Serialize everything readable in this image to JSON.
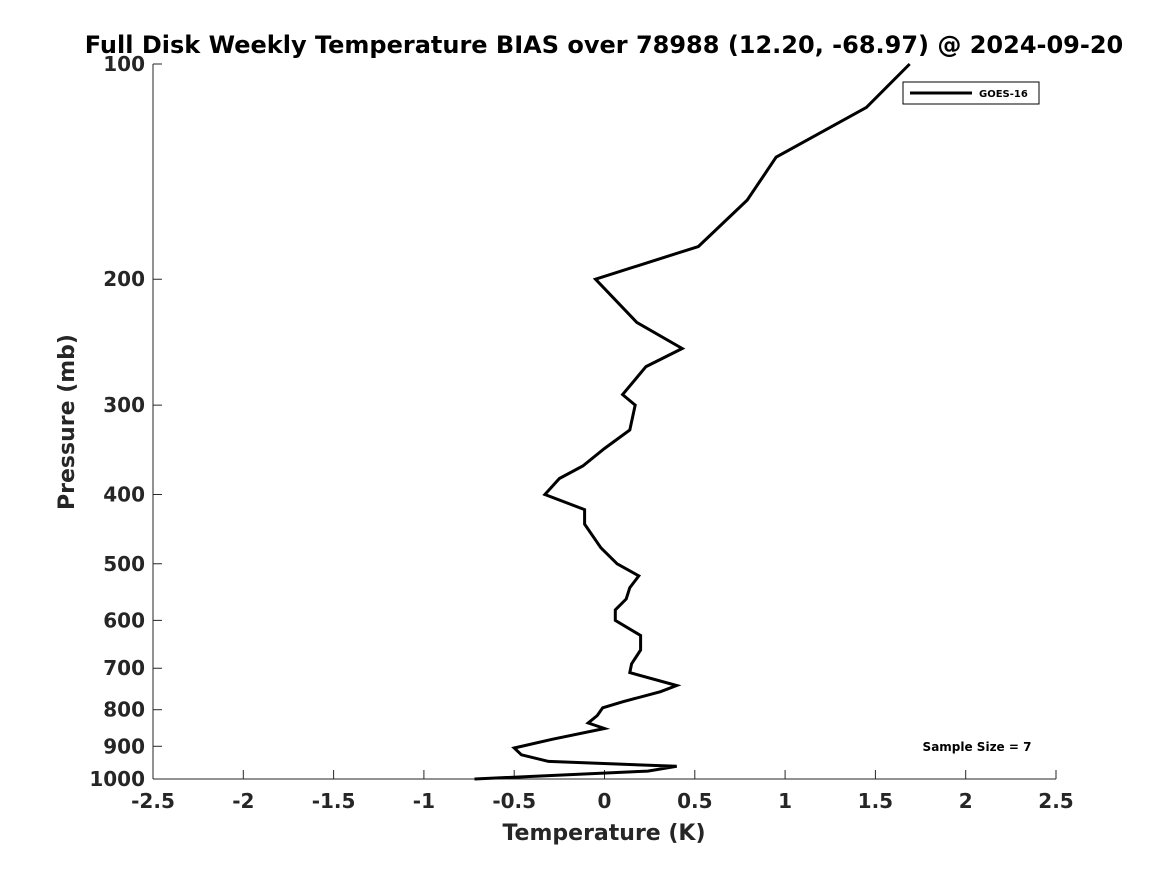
{
  "chart_data": {
    "type": "line",
    "title": "Full Disk Weekly Temperature BIAS over 78988 (12.20, -68.97) @ 2024-09-20",
    "xlabel": "Temperature (K)",
    "ylabel": "Pressure (mb)",
    "xlim": [
      -2.5,
      2.5
    ],
    "ylim": [
      100,
      1000
    ],
    "y_scale": "log",
    "y_reversed": true,
    "grid": false,
    "legend_position": "top-right",
    "x_ticks": [
      "-2.5",
      "-2",
      "-1.5",
      "-1",
      "-0.5",
      "0",
      "0.5",
      "1",
      "1.5",
      "2",
      "2.5"
    ],
    "y_ticks": [
      "100",
      "200",
      "300",
      "400",
      "500",
      "600",
      "700",
      "800",
      "900",
      "1000"
    ],
    "annotation": "Sample Size = 7",
    "series": [
      {
        "name": "GOES-16",
        "color": "#000000",
        "points": [
          {
            "x": 1.69,
            "p": 100
          },
          {
            "x": 1.45,
            "p": 115
          },
          {
            "x": 0.95,
            "p": 135
          },
          {
            "x": 0.79,
            "p": 155
          },
          {
            "x": 0.52,
            "p": 180
          },
          {
            "x": -0.05,
            "p": 200
          },
          {
            "x": 0.18,
            "p": 230
          },
          {
            "x": 0.43,
            "p": 250
          },
          {
            "x": 0.23,
            "p": 265
          },
          {
            "x": 0.1,
            "p": 290
          },
          {
            "x": 0.17,
            "p": 300
          },
          {
            "x": 0.14,
            "p": 325
          },
          {
            "x": 0.0,
            "p": 345
          },
          {
            "x": -0.12,
            "p": 365
          },
          {
            "x": -0.25,
            "p": 380
          },
          {
            "x": -0.33,
            "p": 400
          },
          {
            "x": -0.11,
            "p": 420
          },
          {
            "x": -0.11,
            "p": 440
          },
          {
            "x": -0.02,
            "p": 475
          },
          {
            "x": 0.07,
            "p": 500
          },
          {
            "x": 0.19,
            "p": 520
          },
          {
            "x": 0.14,
            "p": 540
          },
          {
            "x": 0.12,
            "p": 560
          },
          {
            "x": 0.06,
            "p": 580
          },
          {
            "x": 0.06,
            "p": 600
          },
          {
            "x": 0.2,
            "p": 630
          },
          {
            "x": 0.2,
            "p": 660
          },
          {
            "x": 0.15,
            "p": 690
          },
          {
            "x": 0.14,
            "p": 710
          },
          {
            "x": 0.4,
            "p": 740
          },
          {
            "x": 0.31,
            "p": 755
          },
          {
            "x": 0.1,
            "p": 780
          },
          {
            "x": -0.01,
            "p": 795
          },
          {
            "x": -0.04,
            "p": 815
          },
          {
            "x": -0.09,
            "p": 835
          },
          {
            "x": 0.0,
            "p": 850
          },
          {
            "x": -0.29,
            "p": 880
          },
          {
            "x": -0.5,
            "p": 905
          },
          {
            "x": -0.46,
            "p": 925
          },
          {
            "x": -0.31,
            "p": 945
          },
          {
            "x": 0.4,
            "p": 960
          },
          {
            "x": 0.24,
            "p": 975
          },
          {
            "x": -0.72,
            "p": 1000
          }
        ]
      }
    ]
  }
}
